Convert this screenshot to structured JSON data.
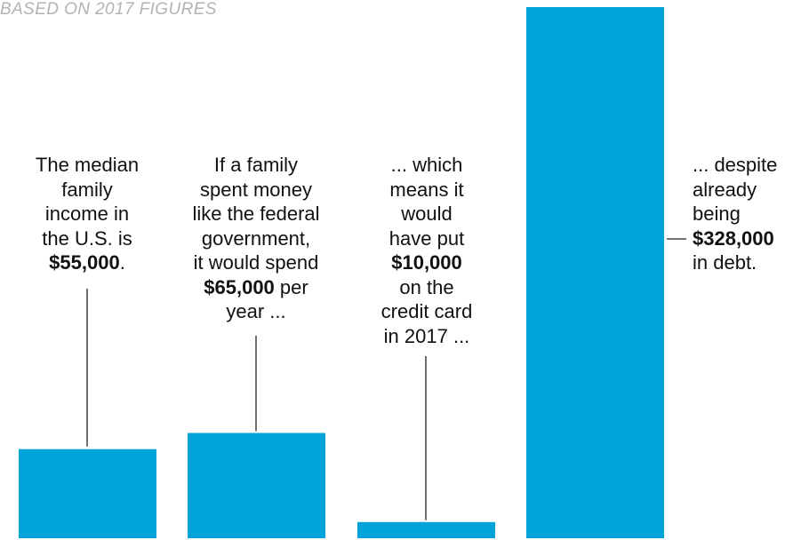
{
  "subtitle": "BASED ON 2017 FIGURES",
  "colors": {
    "bar": "#00a3d9",
    "leader_line": "#222222",
    "subtitle": "#b3b3b3"
  },
  "chart_data": {
    "type": "bar",
    "title": "",
    "subtitle": "BASED ON 2017 FIGURES",
    "categories": [
      "",
      "",
      "",
      ""
    ],
    "values": [
      55000,
      65000,
      10000,
      328000
    ],
    "ylim": [
      0,
      328000
    ],
    "grid": false,
    "legend": "none",
    "annotations": [
      {
        "lines": [
          [
            {
              "t": "The median"
            }
          ],
          [
            {
              "t": "family"
            }
          ],
          [
            {
              "t": "income in"
            }
          ],
          [
            {
              "t": "the U.S. is"
            }
          ],
          [
            {
              "t": "$55,000",
              "b": true
            },
            {
              "t": "."
            }
          ]
        ]
      },
      {
        "lines": [
          [
            {
              "t": "If a family"
            }
          ],
          [
            {
              "t": "spent money"
            }
          ],
          [
            {
              "t": "like the federal"
            }
          ],
          [
            {
              "t": "government,"
            }
          ],
          [
            {
              "t": "it would spend"
            }
          ],
          [
            {
              "t": "$65,000",
              "b": true
            },
            {
              "t": " per"
            }
          ],
          [
            {
              "t": "year ..."
            }
          ]
        ]
      },
      {
        "lines": [
          [
            {
              "t": "... which"
            }
          ],
          [
            {
              "t": "means it"
            }
          ],
          [
            {
              "t": "would"
            }
          ],
          [
            {
              "t": "have put"
            }
          ],
          [
            {
              "t": "$10,000",
              "b": true
            }
          ],
          [
            {
              "t": "on the"
            }
          ],
          [
            {
              "t": "credit card"
            }
          ],
          [
            {
              "t": "in 2017 ..."
            }
          ]
        ]
      },
      {
        "lines": [
          [
            {
              "t": "... despite"
            }
          ],
          [
            {
              "t": "already"
            }
          ],
          [
            {
              "t": "being"
            }
          ],
          [
            {
              "t": "$328,000",
              "b": true
            }
          ],
          [
            {
              "t": "in debt."
            }
          ]
        ]
      }
    ]
  }
}
